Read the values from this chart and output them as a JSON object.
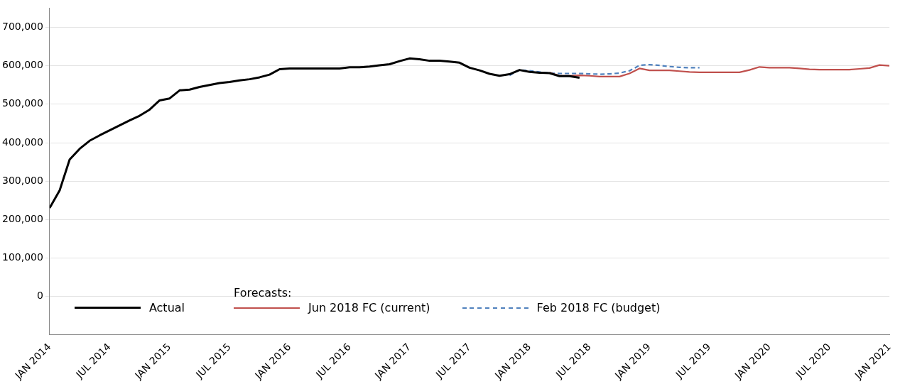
{
  "chart_data": {
    "type": "line",
    "legend": "bottom",
    "legend_title": "Forecasts:",
    "grid": "y",
    "marker": "none",
    "xlim": [
      "2014-01",
      "2021-01"
    ],
    "xticks": [
      {
        "value": "2014-01",
        "label": "JAN 2014"
      },
      {
        "value": "2014-07",
        "label": "JUL 2014"
      },
      {
        "value": "2015-01",
        "label": "JAN 2015"
      },
      {
        "value": "2015-07",
        "label": "JUL 2015"
      },
      {
        "value": "2016-01",
        "label": "JAN 2016"
      },
      {
        "value": "2016-07",
        "label": "JUL 2016"
      },
      {
        "value": "2017-01",
        "label": "JAN 2017"
      },
      {
        "value": "2017-07",
        "label": "JUL 2017"
      },
      {
        "value": "2018-01",
        "label": "JAN 2018"
      },
      {
        "value": "2018-07",
        "label": "JUL 2018"
      },
      {
        "value": "2019-01",
        "label": "JAN 2019"
      },
      {
        "value": "2019-07",
        "label": "JUL 2019"
      },
      {
        "value": "2020-01",
        "label": "JAN 2020"
      },
      {
        "value": "2020-07",
        "label": "JUL 2020"
      },
      {
        "value": "2021-01",
        "label": "JAN 2021"
      }
    ],
    "ylim": [
      -100000,
      750000
    ],
    "yticks": [
      {
        "value": 0,
        "label": "0"
      },
      {
        "value": 100000,
        "label": "100,000"
      },
      {
        "value": 200000,
        "label": "200,000"
      },
      {
        "value": 300000,
        "label": "300,000"
      },
      {
        "value": 400000,
        "label": "400,000"
      },
      {
        "value": 500000,
        "label": "500,000"
      },
      {
        "value": 600000,
        "label": "600,000"
      },
      {
        "value": 700000,
        "label": "700,000"
      }
    ],
    "series": [
      {
        "name": "Actual",
        "color": "#000000",
        "line_style": "solid",
        "x": [
          "2014-01",
          "2014-02",
          "2014-03",
          "2014-04",
          "2014-05",
          "2014-06",
          "2014-07",
          "2014-08",
          "2014-09",
          "2014-10",
          "2014-11",
          "2014-12",
          "2015-01",
          "2015-02",
          "2015-03",
          "2015-04",
          "2015-05",
          "2015-06",
          "2015-07",
          "2015-08",
          "2015-09",
          "2015-10",
          "2015-11",
          "2015-12",
          "2016-01",
          "2016-02",
          "2016-03",
          "2016-04",
          "2016-05",
          "2016-06",
          "2016-07",
          "2016-08",
          "2016-09",
          "2016-10",
          "2016-11",
          "2016-12",
          "2017-01",
          "2017-02",
          "2017-03",
          "2017-04",
          "2017-05",
          "2017-06",
          "2017-07",
          "2017-08",
          "2017-09",
          "2017-10",
          "2017-11",
          "2017-12",
          "2018-01",
          "2018-02",
          "2018-03",
          "2018-04",
          "2018-05",
          "2018-06"
        ],
        "values": [
          230000,
          276000,
          356000,
          384000,
          405000,
          419000,
          432000,
          445000,
          458000,
          470000,
          486000,
          510000,
          515000,
          536000,
          538000,
          545000,
          550000,
          555000,
          558000,
          562000,
          565000,
          570000,
          577000,
          591000,
          593000,
          593000,
          593000,
          593000,
          593000,
          593000,
          596000,
          596000,
          598000,
          601000,
          604000,
          612000,
          619000,
          617000,
          613000,
          613000,
          611000,
          608000,
          595000,
          588000,
          579000,
          574000,
          578000,
          589000,
          584000,
          582000,
          581000,
          573000,
          573000,
          569000
        ]
      },
      {
        "name": "Jun 2018 FC (current)",
        "color": "#c0504d",
        "line_style": "solid",
        "x": [
          "2018-03",
          "2018-04",
          "2018-05",
          "2018-06",
          "2018-07",
          "2018-08",
          "2018-09",
          "2018-10",
          "2018-11",
          "2018-12",
          "2019-01",
          "2019-02",
          "2019-03",
          "2019-04",
          "2019-05",
          "2019-06",
          "2019-07",
          "2019-08",
          "2019-09",
          "2019-10",
          "2019-11",
          "2019-12",
          "2020-01",
          "2020-02",
          "2020-03",
          "2020-04",
          "2020-05",
          "2020-06",
          "2020-07",
          "2020-08",
          "2020-09",
          "2020-10",
          "2020-11",
          "2020-12",
          "2021-01"
        ],
        "values": [
          582000,
          574000,
          574000,
          575000,
          574000,
          572000,
          572000,
          572000,
          580000,
          593000,
          588000,
          588000,
          588000,
          586000,
          584000,
          583000,
          583000,
          583000,
          583000,
          583000,
          589000,
          597000,
          595000,
          595000,
          595000,
          593000,
          591000,
          590000,
          590000,
          590000,
          590000,
          592000,
          594000,
          602000,
          600000
        ]
      },
      {
        "name": "Feb 2018 FC (budget)",
        "color": "#4f81bd",
        "line_style": "dashed",
        "x": [
          "2017-11",
          "2017-12",
          "2018-01",
          "2018-02",
          "2018-03",
          "2018-04",
          "2018-05",
          "2018-06",
          "2018-07",
          "2018-08",
          "2018-09",
          "2018-10",
          "2018-11",
          "2018-12",
          "2019-01",
          "2019-02",
          "2019-03",
          "2019-04",
          "2019-05",
          "2019-06"
        ],
        "values": [
          575000,
          589000,
          587000,
          584000,
          581000,
          580000,
          580000,
          580000,
          579000,
          578000,
          579000,
          581000,
          587000,
          601000,
          603000,
          601000,
          598000,
          596000,
          595000,
          595000
        ]
      }
    ]
  }
}
